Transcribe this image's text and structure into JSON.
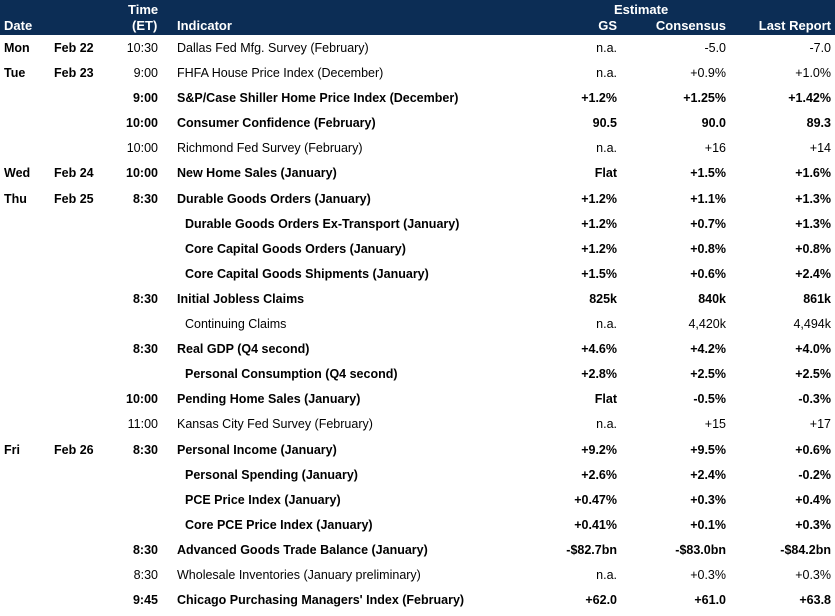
{
  "header": {
    "date": "Date",
    "time_line1": "Time",
    "time_line2": "(ET)",
    "indicator": "Indicator",
    "estimate": "Estimate",
    "gs": "GS",
    "consensus": "Consensus",
    "last_report": "Last Report"
  },
  "rows": [
    {
      "day": "Mon",
      "date": "Feb 22",
      "time": "10:30",
      "indicator": "Dallas Fed Mfg. Survey (February)",
      "gs": "n.a.",
      "consensus": "-5.0",
      "last": "-7.0",
      "bold": false,
      "sub": false
    },
    {
      "day": "Tue",
      "date": "Feb 23",
      "time": "9:00",
      "indicator": "FHFA House Price Index (December)",
      "gs": "n.a.",
      "consensus": "+0.9%",
      "last": "+1.0%",
      "bold": false,
      "sub": false
    },
    {
      "day": "",
      "date": "",
      "time": "9:00",
      "indicator": "S&P/Case Shiller Home Price Index (December)",
      "gs": "+1.2%",
      "consensus": "+1.25%",
      "last": "+1.42%",
      "bold": true,
      "sub": false
    },
    {
      "day": "",
      "date": "",
      "time": "10:00",
      "indicator": "Consumer Confidence (February)",
      "gs": "90.5",
      "consensus": "90.0",
      "last": "89.3",
      "bold": true,
      "sub": false
    },
    {
      "day": "",
      "date": "",
      "time": "10:00",
      "indicator": "Richmond Fed Survey (February)",
      "gs": "n.a.",
      "consensus": "+16",
      "last": "+14",
      "bold": false,
      "sub": false
    },
    {
      "day": "Wed",
      "date": "Feb 24",
      "time": "10:00",
      "indicator": "New Home Sales (January)",
      "gs": "Flat",
      "consensus": "+1.5%",
      "last": "+1.6%",
      "bold": true,
      "sub": false
    },
    {
      "day": "Thu",
      "date": "Feb 25",
      "time": "8:30",
      "indicator": "Durable Goods Orders (January)",
      "gs": "+1.2%",
      "consensus": "+1.1%",
      "last": "+1.3%",
      "bold": true,
      "sub": false
    },
    {
      "day": "",
      "date": "",
      "time": "",
      "indicator": "Durable Goods Orders Ex-Transport (January)",
      "gs": "+1.2%",
      "consensus": "+0.7%",
      "last": "+1.3%",
      "bold": true,
      "sub": true
    },
    {
      "day": "",
      "date": "",
      "time": "",
      "indicator": "Core Capital Goods Orders (January)",
      "gs": "+1.2%",
      "consensus": "+0.8%",
      "last": "+0.8%",
      "bold": true,
      "sub": true
    },
    {
      "day": "",
      "date": "",
      "time": "",
      "indicator": "Core Capital Goods Shipments (January)",
      "gs": "+1.5%",
      "consensus": "+0.6%",
      "last": "+2.4%",
      "bold": true,
      "sub": true
    },
    {
      "day": "",
      "date": "",
      "time": "8:30",
      "indicator": "Initial Jobless Claims",
      "gs": "825k",
      "consensus": "840k",
      "last": "861k",
      "bold": true,
      "sub": false
    },
    {
      "day": "",
      "date": "",
      "time": "",
      "indicator": "Continuing Claims",
      "gs": "n.a.",
      "consensus": "4,420k",
      "last": "4,494k",
      "bold": false,
      "sub": true
    },
    {
      "day": "",
      "date": "",
      "time": "8:30",
      "indicator": "Real GDP (Q4 second)",
      "gs": "+4.6%",
      "consensus": "+4.2%",
      "last": "+4.0%",
      "bold": true,
      "sub": false
    },
    {
      "day": "",
      "date": "",
      "time": "",
      "indicator": "Personal Consumption (Q4 second)",
      "gs": "+2.8%",
      "consensus": "+2.5%",
      "last": "+2.5%",
      "bold": true,
      "sub": true
    },
    {
      "day": "",
      "date": "",
      "time": "10:00",
      "indicator": "Pending Home Sales (January)",
      "gs": "Flat",
      "consensus": "-0.5%",
      "last": "-0.3%",
      "bold": true,
      "sub": false
    },
    {
      "day": "",
      "date": "",
      "time": "11:00",
      "indicator": "Kansas City Fed Survey (February)",
      "gs": "n.a.",
      "consensus": "+15",
      "last": "+17",
      "bold": false,
      "sub": false
    },
    {
      "day": "Fri",
      "date": "Feb 26",
      "time": "8:30",
      "indicator": "Personal Income (January)",
      "gs": "+9.2%",
      "consensus": "+9.5%",
      "last": "+0.6%",
      "bold": true,
      "sub": false
    },
    {
      "day": "",
      "date": "",
      "time": "",
      "indicator": "Personal Spending (January)",
      "gs": "+2.6%",
      "consensus": "+2.4%",
      "last": "-0.2%",
      "bold": true,
      "sub": true
    },
    {
      "day": "",
      "date": "",
      "time": "",
      "indicator": "PCE Price Index (January)",
      "gs": "+0.47%",
      "consensus": "+0.3%",
      "last": "+0.4%",
      "bold": true,
      "sub": true
    },
    {
      "day": "",
      "date": "",
      "time": "",
      "indicator": "Core PCE Price Index (January)",
      "gs": "+0.41%",
      "consensus": "+0.1%",
      "last": "+0.3%",
      "bold": true,
      "sub": true
    },
    {
      "day": "",
      "date": "",
      "time": "8:30",
      "indicator": "Advanced Goods Trade Balance (January)",
      "gs": "-$82.7bn",
      "consensus": "-$83.0bn",
      "last": "-$84.2bn",
      "bold": true,
      "sub": false
    },
    {
      "day": "",
      "date": "",
      "time": "8:30",
      "indicator": "Wholesale Inventories (January preliminary)",
      "gs": "n.a.",
      "consensus": "+0.3%",
      "last": "+0.3%",
      "bold": false,
      "sub": false
    },
    {
      "day": "",
      "date": "",
      "time": "9:45",
      "indicator": "Chicago Purchasing Managers' Index (February)",
      "gs": "+62.0",
      "consensus": "+61.0",
      "last": "+63.8",
      "bold": true,
      "sub": false
    }
  ]
}
